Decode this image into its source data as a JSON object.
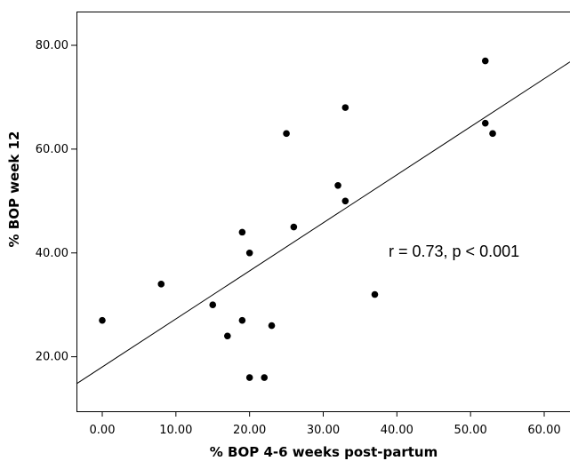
{
  "chart_data": {
    "type": "scatter",
    "xlabel": "% BOP 4-6 weeks post-partum",
    "ylabel": "% BOP week 12",
    "xlim": [
      -3.5,
      63.5
    ],
    "ylim": [
      9.5,
      86.5
    ],
    "x_ticks": [
      "0.00",
      "10.00",
      "20.00",
      "30.00",
      "40.00",
      "50.00",
      "60.00"
    ],
    "x_tick_values": [
      0,
      10,
      20,
      30,
      40,
      50,
      60
    ],
    "y_ticks": [
      "20.00",
      "40.00",
      "60.00",
      "80.00"
    ],
    "y_tick_values": [
      20,
      40,
      60,
      80
    ],
    "points": [
      {
        "x": 0,
        "y": 27
      },
      {
        "x": 8,
        "y": 34
      },
      {
        "x": 15,
        "y": 30
      },
      {
        "x": 17,
        "y": 24
      },
      {
        "x": 19,
        "y": 44
      },
      {
        "x": 19,
        "y": 27
      },
      {
        "x": 20,
        "y": 40
      },
      {
        "x": 20,
        "y": 16
      },
      {
        "x": 22,
        "y": 16
      },
      {
        "x": 23,
        "y": 26
      },
      {
        "x": 25,
        "y": 63
      },
      {
        "x": 26,
        "y": 45
      },
      {
        "x": 32,
        "y": 53
      },
      {
        "x": 33,
        "y": 50
      },
      {
        "x": 33,
        "y": 68
      },
      {
        "x": 37,
        "y": 32
      },
      {
        "x": 52,
        "y": 77
      },
      {
        "x": 52,
        "y": 65
      },
      {
        "x": 53,
        "y": 63
      }
    ],
    "fit_line": {
      "x": [
        -3.5,
        63.5
      ],
      "y": [
        14.8,
        76.8
      ]
    },
    "annotation": "r = 0.73, p < 0.001",
    "grid": false,
    "legend": "none"
  }
}
